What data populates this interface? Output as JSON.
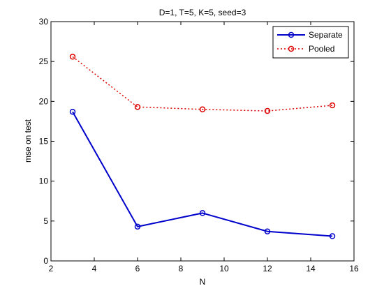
{
  "chart_data": {
    "type": "line",
    "title": "D=1, T=5, K=5, seed=3",
    "xlabel": "N",
    "ylabel": "mse on test",
    "xlim": [
      2,
      16
    ],
    "ylim": [
      0,
      30
    ],
    "xticks": [
      2,
      4,
      6,
      8,
      10,
      12,
      14,
      16
    ],
    "yticks": [
      0,
      5,
      10,
      15,
      20,
      25,
      30
    ],
    "xtick_labels": [
      "2",
      "4",
      "6",
      "8",
      "10",
      "12",
      "14",
      "16"
    ],
    "ytick_labels": [
      "0",
      "5",
      "10",
      "15",
      "20",
      "25",
      "30"
    ],
    "grid": false,
    "legend_position": "top-right",
    "x": [
      3,
      6,
      9,
      12,
      15
    ],
    "series": [
      {
        "name": "Separate",
        "values": [
          18.7,
          4.3,
          6.0,
          3.7,
          3.1
        ],
        "color": "#0000cc",
        "line_style": "solid",
        "marker": "circle"
      },
      {
        "name": "Pooled",
        "values": [
          25.6,
          19.3,
          19.0,
          18.8,
          19.5
        ],
        "color": "#dd0000",
        "line_style": "dotted",
        "marker": "circle"
      }
    ]
  }
}
